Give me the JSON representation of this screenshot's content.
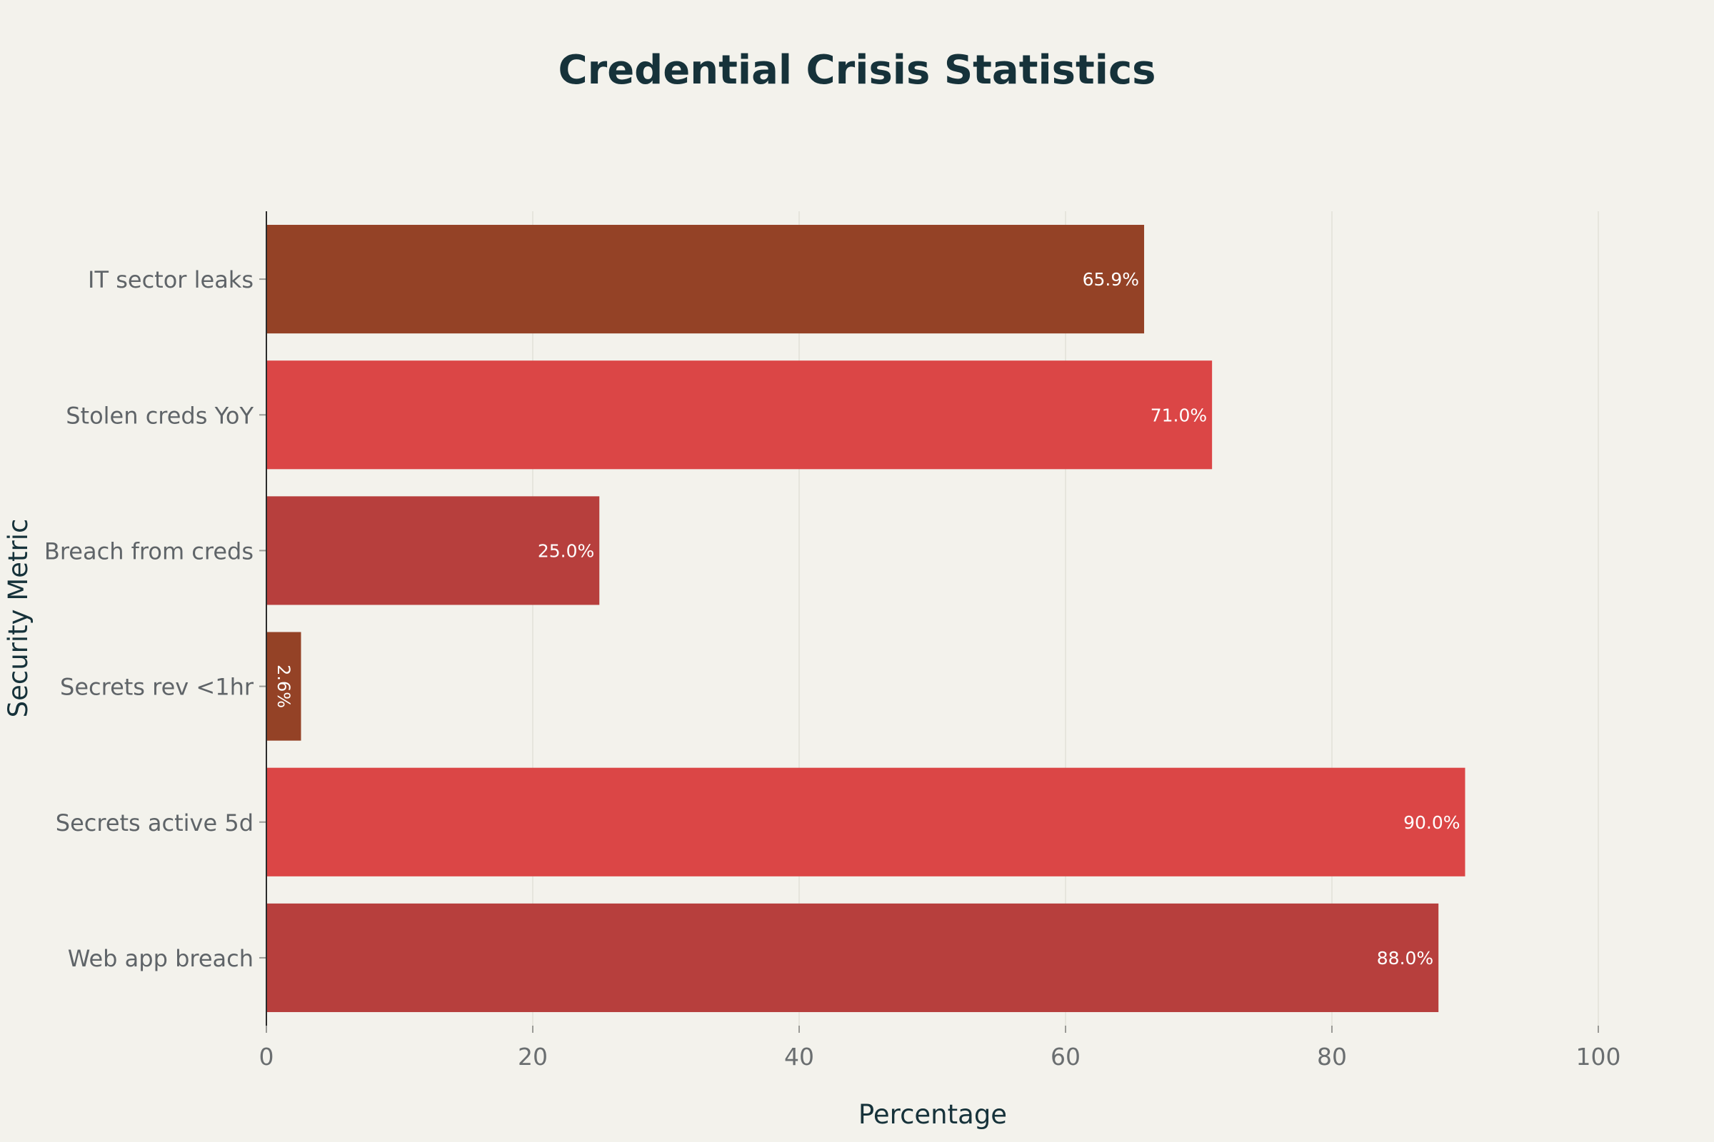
{
  "chart_data": {
    "type": "bar",
    "orientation": "horizontal",
    "title": "Credential Crisis Statistics",
    "xlabel": "Percentage",
    "ylabel": "Security Metric",
    "xlim": [
      0,
      100
    ],
    "xticks": [
      0,
      20,
      40,
      60,
      80,
      100
    ],
    "grid": "vertical",
    "legend": "none",
    "categories": [
      "IT sector leaks",
      "Stolen creds YoY",
      "Breach from creds",
      "Secrets rev <1hr",
      "Secrets active 5d",
      "Web app breach"
    ],
    "values": [
      65.9,
      71.0,
      25.0,
      2.6,
      90.0,
      88.0
    ],
    "data_labels": [
      "65.9%",
      "71.0%",
      "25.0%",
      "2.6%",
      "90.0%",
      "88.0%"
    ],
    "colors": [
      "#944226",
      "#db4646",
      "#b73f3d",
      "#944226",
      "#db4646",
      "#b73f3d"
    ],
    "label_color": "#ffffff"
  }
}
